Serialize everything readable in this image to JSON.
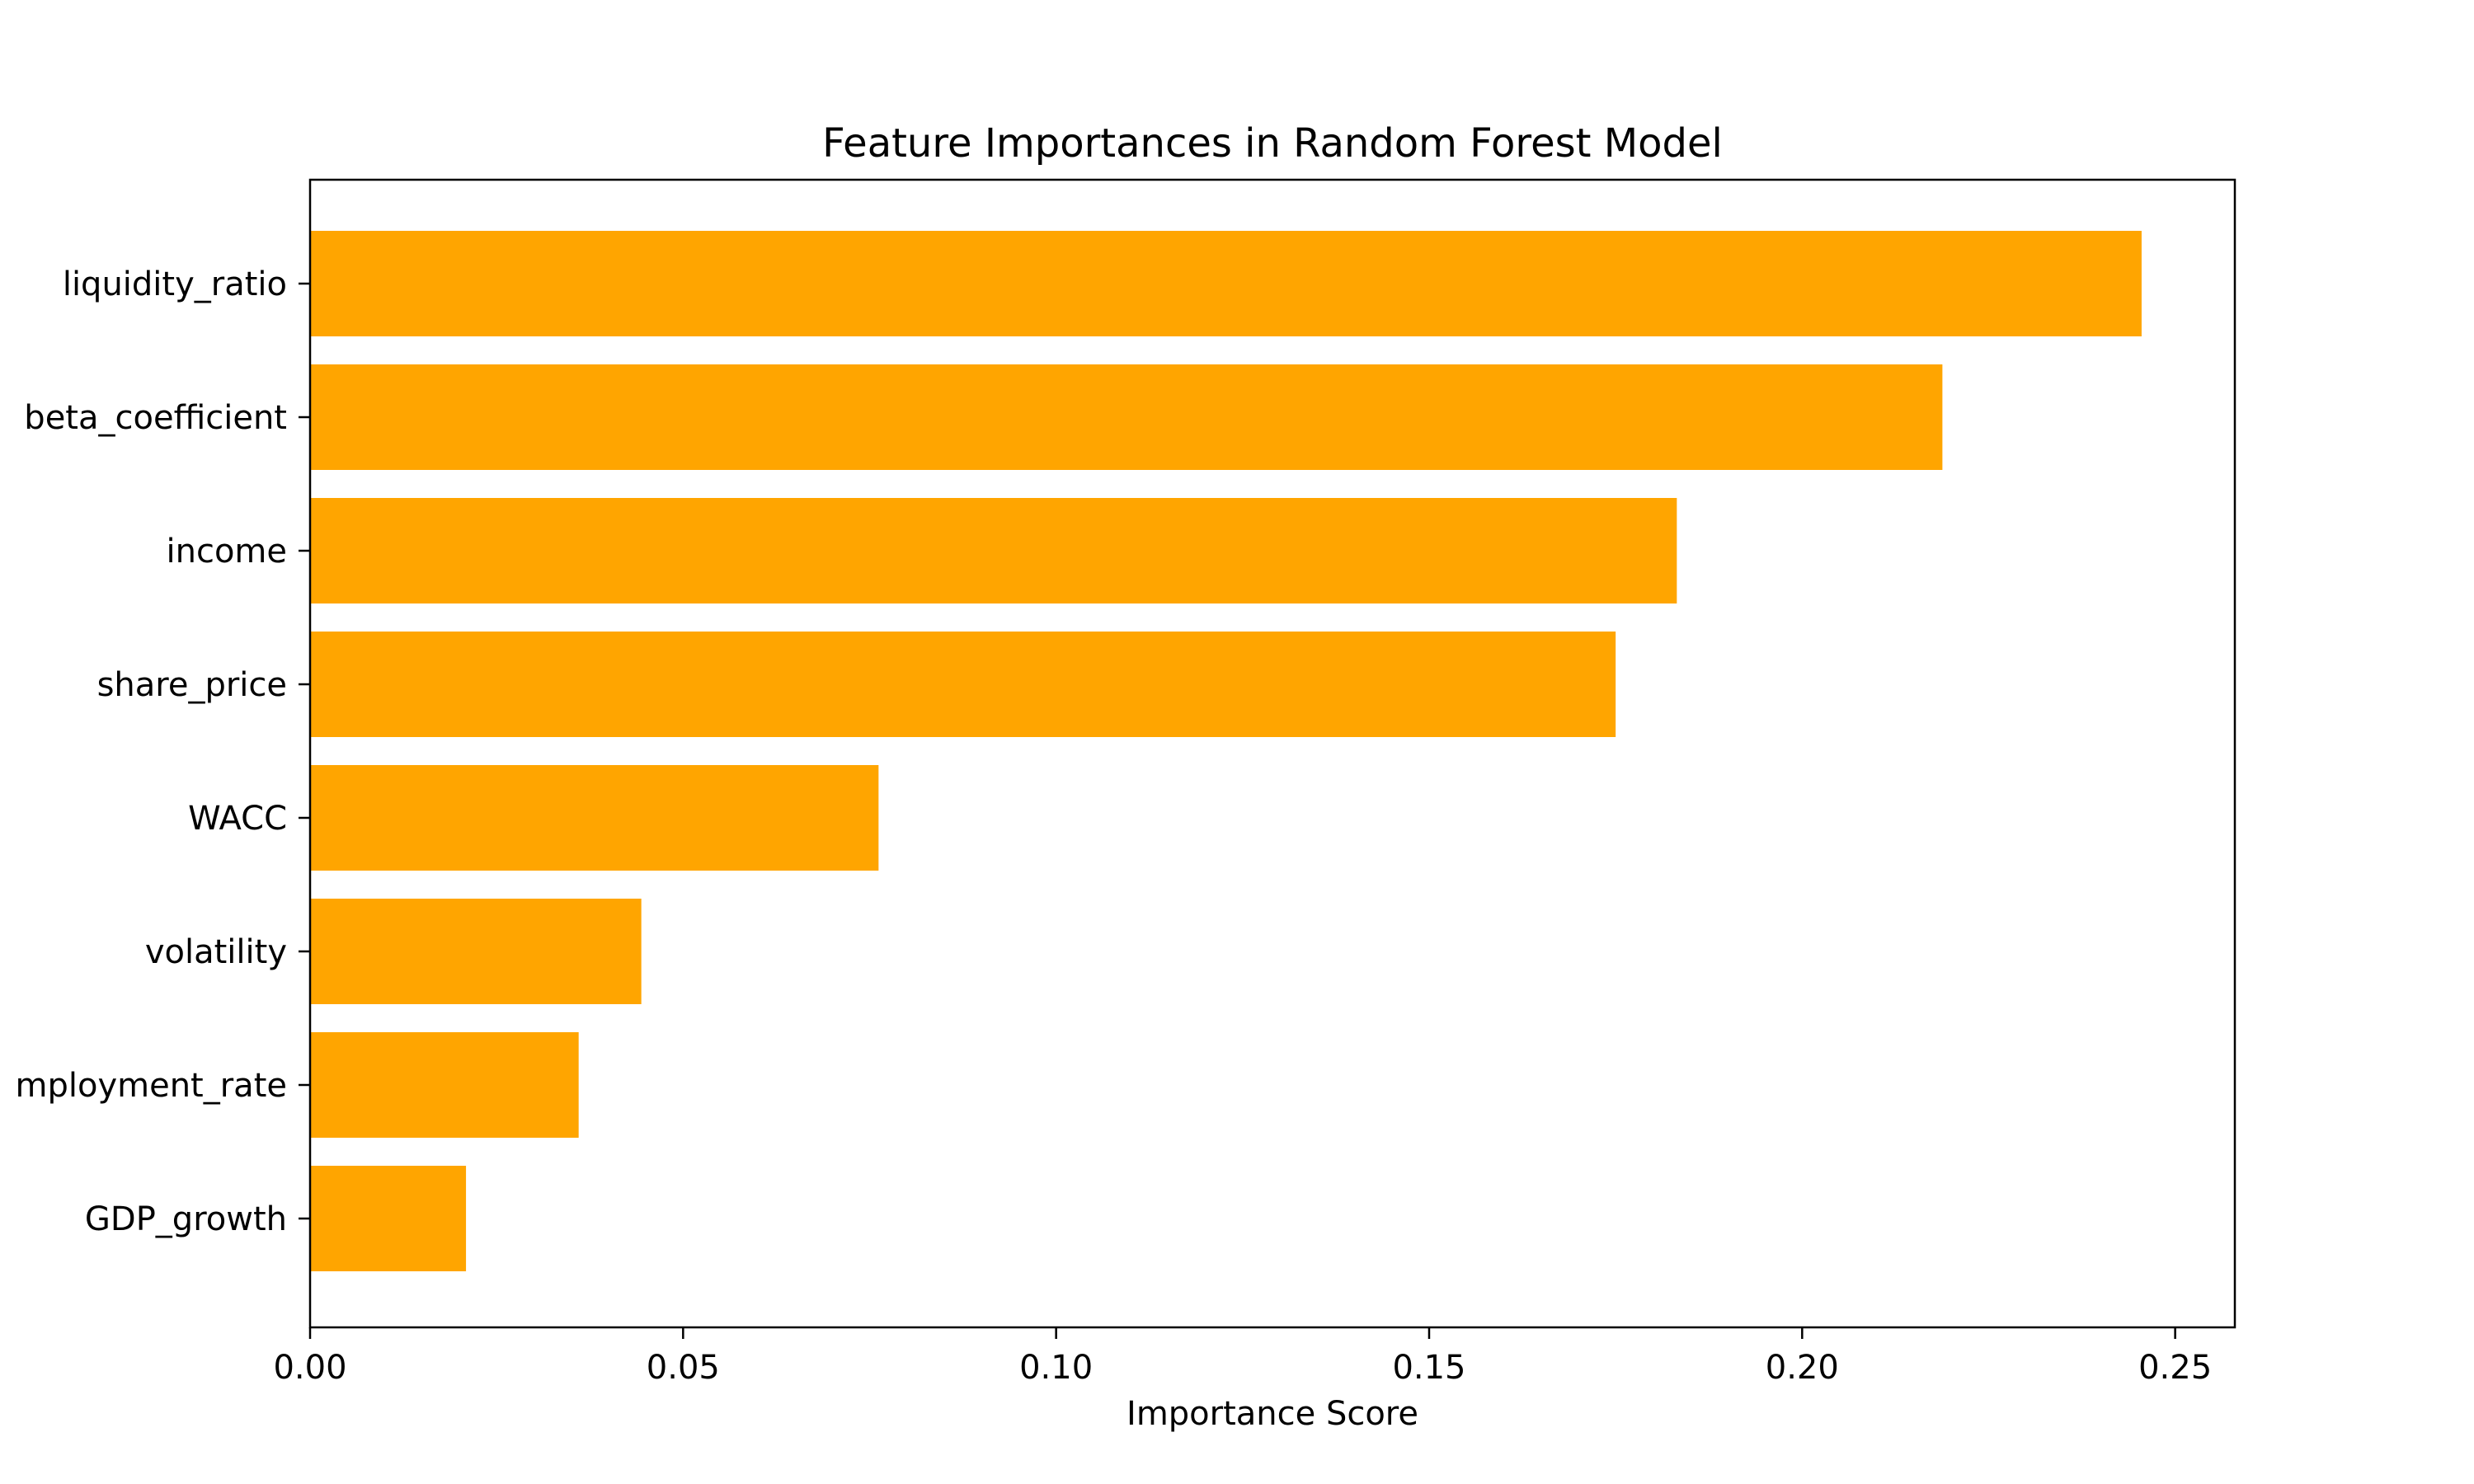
{
  "chart_data": {
    "type": "bar",
    "orientation": "horizontal",
    "title": "Feature Importances in Random Forest Model",
    "xlabel": "Importance Score",
    "ylabel": "",
    "categories": [
      "liquidity_ratio",
      "beta_coefficient",
      "income",
      "share_price",
      "WACC",
      "volatility",
      "mployment_rate",
      "GDP_growth"
    ],
    "values": [
      0.2455,
      0.2188,
      0.1832,
      0.175,
      0.0762,
      0.0444,
      0.036,
      0.0209
    ],
    "xlim": [
      0.0,
      0.258
    ],
    "xticks": [
      0.0,
      0.05,
      0.1,
      0.15,
      0.2,
      0.25
    ],
    "xtick_labels": [
      "0.00",
      "0.05",
      "0.10",
      "0.15",
      "0.20",
      "0.25"
    ],
    "bar_color": "#FFA500",
    "grid": false,
    "legend": "none"
  }
}
